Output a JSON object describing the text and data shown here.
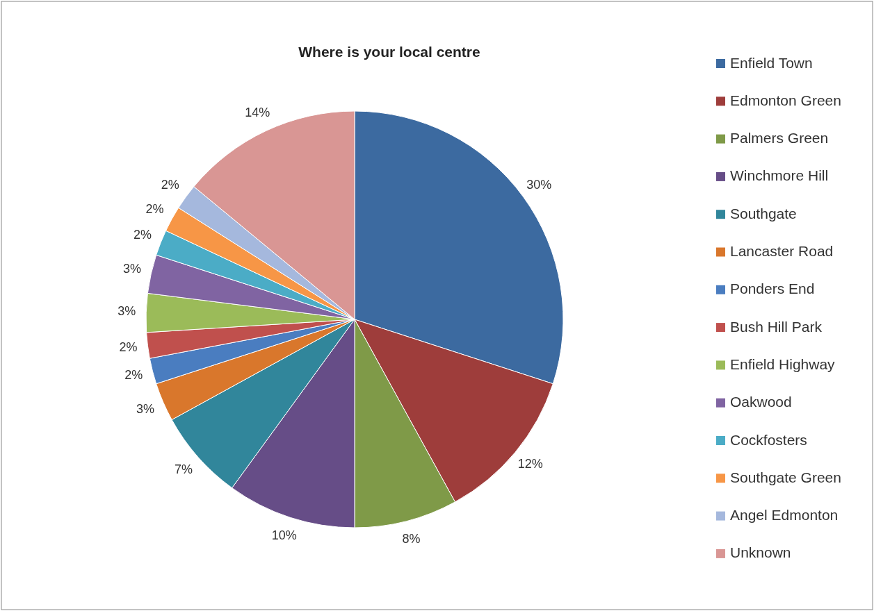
{
  "chart_data": {
    "type": "pie",
    "title": "Where is your local centre",
    "categories": [
      "Enfield Town",
      "Edmonton Green",
      "Palmers Green",
      "Winchmore Hill",
      "Southgate",
      "Lancaster Road",
      "Ponders End",
      "Bush Hill Park",
      "Enfield Highway",
      "Oakwood",
      "Cockfosters",
      "Southgate Green",
      "Angel Edmonton",
      "Unknown"
    ],
    "values": [
      30,
      12,
      8,
      10,
      7,
      3,
      2,
      2,
      3,
      3,
      2,
      2,
      2,
      14
    ],
    "value_labels": [
      "30%",
      "12%",
      "8%",
      "10%",
      "7%",
      "3%",
      "2%",
      "2%",
      "3%",
      "3%",
      "2%",
      "2%",
      "2%",
      "14%"
    ],
    "colors": [
      "#3c6aa0",
      "#9e3d3b",
      "#7f9a48",
      "#664d87",
      "#31869b",
      "#d9772c",
      "#4a7dc0",
      "#c0504d",
      "#9bbb59",
      "#8064a2",
      "#4bacc6",
      "#f79646",
      "#a5b8dd",
      "#d99694"
    ],
    "legend": "right"
  }
}
